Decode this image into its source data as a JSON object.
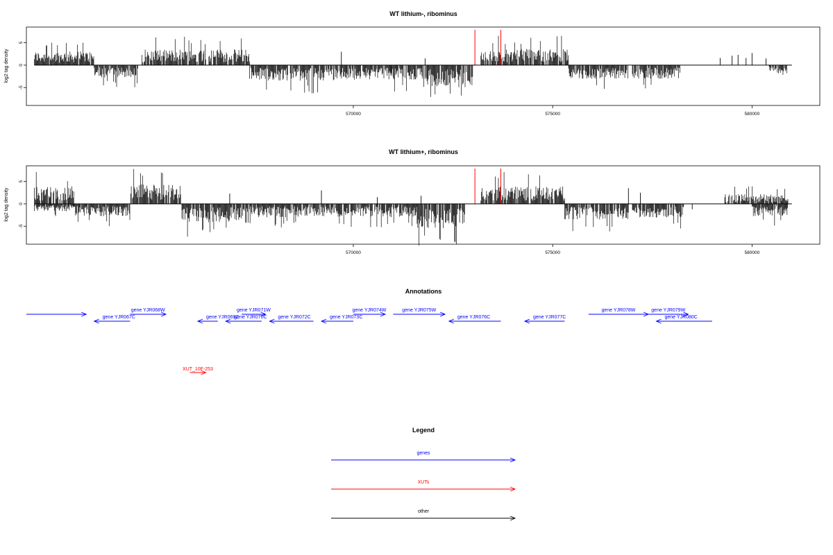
{
  "chart_data": [
    {
      "type": "bar",
      "title": "WT lithium-, ribominus",
      "xlabel": "",
      "ylabel": "log2 tag density",
      "xlim": [
        561800,
        581700
      ],
      "ylim": [
        -9,
        8.5
      ],
      "x_ticks": [
        570000,
        575000,
        580000
      ],
      "x_tick_labels": [
        "570000",
        "575000",
        "580000"
      ],
      "y_ticks": [
        5,
        0,
        -5
      ],
      "y_tick_labels": [
        "5",
        "0",
        "-5"
      ],
      "grid": false,
      "colors": {
        "bars": "#000000",
        "markers": "#ff0000"
      },
      "markers": [
        573050,
        573700
      ],
      "segments": [
        {
          "start": 562000,
          "end": 563500,
          "sign": 1,
          "level": 2.8
        },
        {
          "start": 563500,
          "end": 564600,
          "sign": -1,
          "level": 2.5
        },
        {
          "start": 564700,
          "end": 567400,
          "sign": 1,
          "level": 3.2
        },
        {
          "start": 567400,
          "end": 569700,
          "sign": -1,
          "level": 3.2
        },
        {
          "start": 569700,
          "end": 571800,
          "sign": -1,
          "level": 3.0
        },
        {
          "start": 571800,
          "end": 573000,
          "sign": -1,
          "level": 4.5
        },
        {
          "start": 573200,
          "end": 575400,
          "sign": 1,
          "level": 3.3
        },
        {
          "start": 575400,
          "end": 576900,
          "sign": -1,
          "level": 2.8
        },
        {
          "start": 577000,
          "end": 578200,
          "sign": -1,
          "level": 2.8
        },
        {
          "start": 580400,
          "end": 580900,
          "sign": -1,
          "level": 2.0
        }
      ],
      "sparse": [
        {
          "x": 569700,
          "y": 3.0
        },
        {
          "x": 570950,
          "y": -1.5
        },
        {
          "x": 571800,
          "y": 1.5
        },
        {
          "x": 579200,
          "y": 1.6
        },
        {
          "x": 579500,
          "y": 2.1
        },
        {
          "x": 579650,
          "y": 2.3
        },
        {
          "x": 579850,
          "y": 1.6
        },
        {
          "x": 580000,
          "y": 2.7
        },
        {
          "x": 580350,
          "y": 1.5
        }
      ]
    },
    {
      "type": "bar",
      "title": "WT lithium+, ribominus",
      "xlabel": "",
      "ylabel": "log2 tag density",
      "xlim": [
        561800,
        581700
      ],
      "ylim": [
        -9,
        8.5
      ],
      "x_ticks": [
        570000,
        575000,
        580000
      ],
      "x_tick_labels": [
        "570000",
        "575000",
        "580000"
      ],
      "y_ticks": [
        5,
        0,
        -5
      ],
      "y_tick_labels": [
        "5",
        "0",
        "-5"
      ],
      "grid": false,
      "colors": {
        "bars": "#000000",
        "markers": "#ff0000"
      },
      "markers": [
        573050,
        573700
      ],
      "segments": [
        {
          "start": 562000,
          "end": 563000,
          "sign": 1,
          "level": 3.6
        },
        {
          "start": 562000,
          "end": 563000,
          "sign": -1,
          "level": 1.5
        },
        {
          "start": 563000,
          "end": 564400,
          "sign": -1,
          "level": 2.5
        },
        {
          "start": 564400,
          "end": 565700,
          "sign": 1,
          "level": 4.0
        },
        {
          "start": 565700,
          "end": 567300,
          "sign": -1,
          "level": 3.8
        },
        {
          "start": 567300,
          "end": 571600,
          "sign": -1,
          "level": 2.7
        },
        {
          "start": 571600,
          "end": 572800,
          "sign": -1,
          "level": 5.0
        },
        {
          "start": 573200,
          "end": 575300,
          "sign": 1,
          "level": 3.6
        },
        {
          "start": 575300,
          "end": 576900,
          "sign": -1,
          "level": 3.2
        },
        {
          "start": 577000,
          "end": 578300,
          "sign": -1,
          "level": 2.8
        },
        {
          "start": 579300,
          "end": 580900,
          "sign": 1,
          "level": 2.0
        },
        {
          "start": 580000,
          "end": 580900,
          "sign": -1,
          "level": 2.5
        }
      ],
      "sparse": [
        {
          "x": 566900,
          "y": 2.3
        },
        {
          "x": 569200,
          "y": 3.0
        },
        {
          "x": 570600,
          "y": 1.5
        },
        {
          "x": 571700,
          "y": 1.8
        },
        {
          "x": 576900,
          "y": 3.5
        },
        {
          "x": 577200,
          "y": 2.5
        },
        {
          "x": 578500,
          "y": -1.2
        }
      ]
    }
  ],
  "annotations": {
    "title": "Annotations",
    "features": [
      {
        "label": "",
        "start": 561300,
        "end": 563300,
        "strand": "+",
        "row": 0,
        "type": "gene"
      },
      {
        "label": "gene YJR067C",
        "start": 563500,
        "end": 564400,
        "strand": "-",
        "row": 1,
        "type": "gene"
      },
      {
        "label": "gene YJR068W",
        "start": 564400,
        "end": 565300,
        "strand": "+",
        "row": 0,
        "type": "gene"
      },
      {
        "label": "gene YJR069C",
        "start": 566100,
        "end": 566600,
        "strand": "-",
        "row": 1,
        "type": "gene"
      },
      {
        "label": "gene YJR070C",
        "start": 566800,
        "end": 567700,
        "strand": "-",
        "row": 1,
        "type": "gene"
      },
      {
        "label": "gene YJR071W",
        "start": 567200,
        "end": 567800,
        "strand": "+",
        "row": 0,
        "type": "gene"
      },
      {
        "label": "gene YJR072C",
        "start": 567900,
        "end": 569000,
        "strand": "-",
        "row": 1,
        "type": "gene"
      },
      {
        "label": "gene YJR073C",
        "start": 569200,
        "end": 570000,
        "strand": "-",
        "row": 1,
        "type": "gene"
      },
      {
        "label": "gene YJR074W",
        "start": 570000,
        "end": 570800,
        "strand": "+",
        "row": 0,
        "type": "gene"
      },
      {
        "label": "gene YJR075W",
        "start": 571000,
        "end": 572300,
        "strand": "+",
        "row": 0,
        "type": "gene"
      },
      {
        "label": "gene YJR076C",
        "start": 572400,
        "end": 573700,
        "strand": "-",
        "row": 1,
        "type": "gene"
      },
      {
        "label": "gene YJR077C",
        "start": 574300,
        "end": 575300,
        "strand": "-",
        "row": 1,
        "type": "gene"
      },
      {
        "label": "gene YJR078W",
        "start": 575900,
        "end": 577400,
        "strand": "+",
        "row": 0,
        "type": "gene"
      },
      {
        "label": "gene YJR079W",
        "start": 577400,
        "end": 578400,
        "strand": "+",
        "row": 0,
        "type": "gene"
      },
      {
        "label": "gene YJR080C",
        "start": 577600,
        "end": 579000,
        "strand": "-",
        "row": 1,
        "type": "gene"
      },
      {
        "label": "XUT_10F-253",
        "start": 565900,
        "end": 566300,
        "strand": "+",
        "row": 2,
        "type": "xut"
      }
    ]
  },
  "legend": {
    "title": "Legend",
    "items": [
      {
        "label": "genes",
        "color": "#0000ff"
      },
      {
        "label": "XUTs",
        "color": "#ff0000"
      },
      {
        "label": "other",
        "color": "#000000"
      }
    ]
  },
  "colors": {
    "genes": "#0000ff",
    "xuts": "#ff0000",
    "other": "#000000",
    "axis": "#000000"
  }
}
